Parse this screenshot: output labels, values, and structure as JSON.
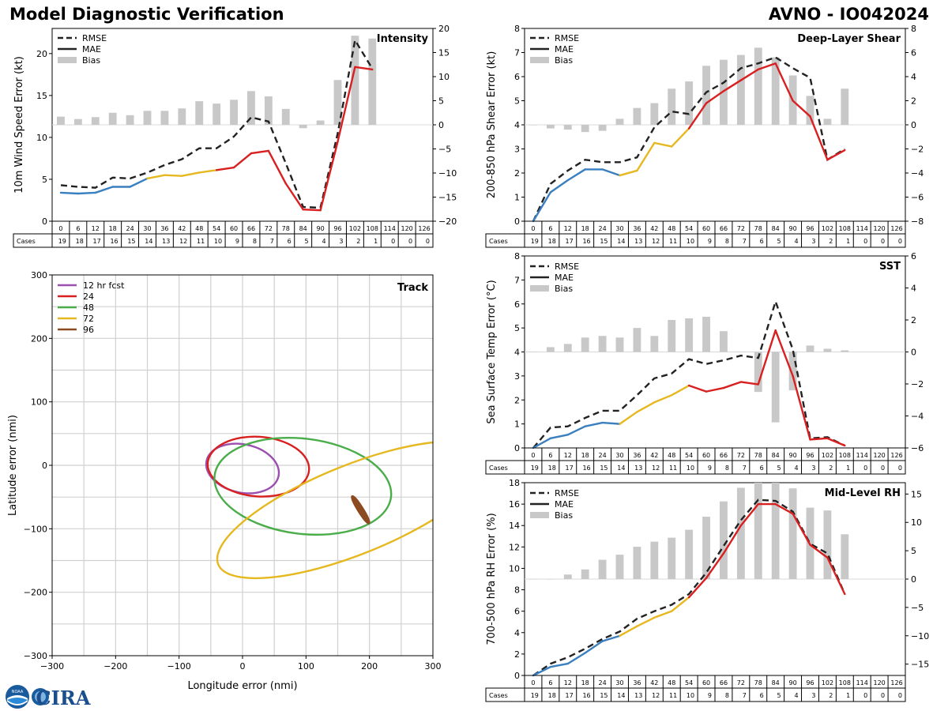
{
  "header": {
    "title": "Model Diagnostic Verification",
    "model_tag": "AVNO - IO042024"
  },
  "colors": {
    "rmse": "#222222",
    "bias": "#c8c8c8",
    "grid": "#d0d0d0",
    "segment_12": "#3a7fbf",
    "segment_24_48": "#e6b820",
    "segment_72_plus": "#d92020",
    "track_12": "#9b4fae",
    "track_24": "#d92020",
    "track_48": "#4aad4a",
    "track_72": "#e6b820",
    "track_96": "#8b4a20"
  },
  "legend": {
    "rmse": "RMSE",
    "mae": "MAE",
    "bias": "Bias"
  },
  "cases_label": "Cases",
  "logos": {
    "noaa": "NOAA",
    "cira": "CIRA"
  },
  "chart_data": [
    {
      "id": "intensity",
      "type": "line",
      "title": "Intensity",
      "ylabel": "10m Wind Speed Error (kt)",
      "ylim": [
        0,
        23
      ],
      "yticks": [
        0,
        5,
        10,
        15,
        20
      ],
      "y2lim": [
        -20,
        20
      ],
      "y2ticks": [
        -20,
        -15,
        -10,
        -5,
        0,
        5,
        10,
        15,
        20
      ],
      "y2ticklabels": [
        "−20",
        "−15",
        "−10",
        "−5",
        "0",
        "5",
        "10",
        "15",
        "20"
      ],
      "x": [
        0,
        6,
        12,
        18,
        24,
        30,
        36,
        42,
        48,
        54,
        60,
        66,
        72,
        78,
        84,
        90,
        96,
        102,
        108,
        114,
        120,
        126
      ],
      "rmse": [
        4.3,
        4.1,
        4.0,
        5.2,
        5.1,
        5.8,
        6.7,
        7.4,
        8.7,
        8.7,
        10.1,
        12.4,
        11.9,
        6.9,
        1.7,
        1.6,
        10.5,
        21.6,
        18.2,
        null,
        null,
        null
      ],
      "mae": [
        3.4,
        3.3,
        3.4,
        4.1,
        4.1,
        5.1,
        5.5,
        5.4,
        5.8,
        6.1,
        6.4,
        8.1,
        8.4,
        4.5,
        1.4,
        1.3,
        9.5,
        18.4,
        18.1,
        null,
        null,
        null
      ],
      "bias": [
        1.7,
        1.2,
        1.6,
        2.5,
        2.0,
        2.9,
        2.9,
        3.4,
        4.9,
        4.4,
        5.2,
        7.0,
        5.9,
        3.3,
        -0.7,
        0.9,
        9.3,
        18.5,
        17.9,
        null,
        null,
        null
      ],
      "cases": [
        19,
        18,
        17,
        16,
        15,
        14,
        13,
        12,
        11,
        10,
        9,
        8,
        7,
        6,
        5,
        4,
        3,
        2,
        1,
        0,
        0,
        0
      ]
    },
    {
      "id": "deep-layer-shear",
      "type": "line",
      "title": "Deep-Layer Shear",
      "ylabel": "200-850 hPa Shear Error (kt)",
      "ylim": [
        0,
        8
      ],
      "yticks": [
        0,
        1,
        2,
        3,
        4,
        5,
        6,
        7,
        8
      ],
      "y2lim": [
        -8,
        8
      ],
      "y2ticks": [
        -8,
        -6,
        -4,
        -2,
        0,
        2,
        4,
        6,
        8
      ],
      "y2ticklabels": [
        "−8",
        "−6",
        "−4",
        "−2",
        "0",
        "2",
        "4",
        "6",
        "8"
      ],
      "x": [
        0,
        6,
        12,
        18,
        24,
        30,
        36,
        42,
        48,
        54,
        60,
        66,
        72,
        78,
        84,
        90,
        96,
        102,
        108,
        114,
        120,
        126
      ],
      "rmse": [
        0.0,
        1.55,
        2.1,
        2.55,
        2.45,
        2.45,
        2.65,
        3.9,
        4.55,
        4.45,
        5.35,
        5.75,
        6.35,
        6.55,
        6.8,
        6.35,
        5.95,
        2.55,
        3.0,
        null,
        null,
        null
      ],
      "mae": [
        0.0,
        1.2,
        1.7,
        2.15,
        2.15,
        1.9,
        2.1,
        3.25,
        3.1,
        3.85,
        4.9,
        5.4,
        5.85,
        6.3,
        6.55,
        5.0,
        4.35,
        2.55,
        2.95,
        null,
        null,
        null
      ],
      "bias": [
        0.0,
        -0.3,
        -0.4,
        -0.6,
        -0.5,
        0.5,
        1.4,
        1.8,
        3.0,
        3.6,
        4.9,
        5.4,
        5.8,
        6.4,
        5.6,
        4.1,
        2.4,
        0.5,
        3.0,
        null,
        null,
        null
      ],
      "cases": [
        19,
        18,
        17,
        16,
        15,
        14,
        13,
        12,
        11,
        10,
        9,
        8,
        7,
        6,
        5,
        4,
        3,
        2,
        1,
        0,
        0,
        0
      ]
    },
    {
      "id": "sst",
      "type": "line",
      "title": "SST",
      "ylabel": "Sea Surface Temp Error (°C)",
      "ylim": [
        0,
        8
      ],
      "yticks": [
        0,
        1,
        2,
        3,
        4,
        5,
        6,
        7,
        8
      ],
      "y2lim": [
        -6,
        6
      ],
      "y2ticks": [
        -6,
        -4,
        -2,
        0,
        2,
        4,
        6
      ],
      "y2ticklabels": [
        "−6",
        "−4",
        "−2",
        "0",
        "2",
        "4",
        "6"
      ],
      "x": [
        0,
        6,
        12,
        18,
        24,
        30,
        36,
        42,
        48,
        54,
        60,
        66,
        72,
        78,
        84,
        90,
        96,
        102,
        108,
        114,
        120,
        126
      ],
      "rmse": [
        0.0,
        0.85,
        0.9,
        1.25,
        1.55,
        1.55,
        2.2,
        2.9,
        3.1,
        3.7,
        3.5,
        3.65,
        3.85,
        3.75,
        6.1,
        4.1,
        0.4,
        0.45,
        0.1,
        null,
        null,
        null
      ],
      "mae": [
        0.0,
        0.4,
        0.55,
        0.9,
        1.05,
        1.0,
        1.5,
        1.9,
        2.2,
        2.6,
        2.35,
        2.5,
        2.75,
        2.65,
        4.9,
        3.0,
        0.35,
        0.4,
        0.1,
        null,
        null,
        null
      ],
      "bias": [
        0.0,
        0.3,
        0.5,
        0.9,
        1.0,
        0.9,
        1.5,
        1.0,
        2.0,
        2.1,
        2.2,
        1.3,
        0.0,
        -2.5,
        -4.4,
        -2.4,
        0.4,
        0.2,
        0.1,
        null,
        null,
        null
      ],
      "cases": [
        19,
        18,
        17,
        16,
        15,
        14,
        13,
        12,
        11,
        10,
        9,
        8,
        7,
        6,
        5,
        4,
        3,
        2,
        1,
        0,
        0,
        0
      ]
    },
    {
      "id": "mid-level-rh",
      "type": "line",
      "title": "Mid-Level RH",
      "ylabel": "700-500 hPa RH Error (%)",
      "ylim": [
        0,
        18
      ],
      "yticks": [
        0,
        2,
        4,
        6,
        8,
        10,
        12,
        14,
        16,
        18
      ],
      "y2lim": [
        -17,
        17
      ],
      "y2ticks": [
        -15,
        -10,
        -5,
        0,
        5,
        10,
        15
      ],
      "y2ticklabels": [
        "−15",
        "−10",
        "−5",
        "0",
        "5",
        "10",
        "15"
      ],
      "x": [
        0,
        6,
        12,
        18,
        24,
        30,
        36,
        42,
        48,
        54,
        60,
        66,
        72,
        78,
        84,
        90,
        96,
        102,
        108,
        114,
        120,
        126
      ],
      "rmse": [
        0.0,
        1.1,
        1.7,
        2.5,
        3.4,
        4.1,
        5.3,
        6.0,
        6.6,
        7.6,
        9.6,
        12.1,
        14.5,
        16.4,
        16.3,
        15.3,
        12.3,
        11.4,
        7.6,
        null,
        null,
        null
      ],
      "mae": [
        0.0,
        0.8,
        1.1,
        2.1,
        3.2,
        3.7,
        4.6,
        5.4,
        6.0,
        7.3,
        9.1,
        11.4,
        14.0,
        16.0,
        16.0,
        15.1,
        12.2,
        11.0,
        7.6,
        null,
        null,
        null
      ],
      "bias": [
        0.0,
        0.0,
        0.8,
        1.7,
        3.4,
        4.3,
        5.7,
        6.6,
        7.3,
        8.7,
        11.0,
        13.7,
        16.1,
        17.0,
        17.0,
        16.0,
        12.6,
        12.1,
        7.9,
        null,
        null,
        null
      ],
      "cases": [
        19,
        18,
        17,
        16,
        15,
        14,
        13,
        12,
        11,
        10,
        9,
        8,
        7,
        6,
        5,
        4,
        3,
        2,
        1,
        0,
        0,
        0
      ]
    },
    {
      "id": "track",
      "type": "ellipse",
      "title": "Track",
      "xlabel": "Longitude error (nmi)",
      "ylabel": "Latitude error (nmi)",
      "xlim": [
        -300,
        300
      ],
      "ylim": [
        -300,
        300
      ],
      "ticks": [
        -300,
        -200,
        -100,
        0,
        100,
        200,
        300
      ],
      "ticklabels": [
        "−300",
        "−200",
        "−100",
        "0",
        "100",
        "200",
        "300"
      ],
      "series": [
        {
          "name": "12 hr fcst",
          "color_key": "track_12",
          "cx": 0,
          "cy": -5,
          "rx": 58,
          "ry": 38,
          "angle": 12
        },
        {
          "name": "24",
          "color_key": "track_24",
          "cx": 25,
          "cy": -2,
          "rx": 80,
          "ry": 47,
          "angle": 4
        },
        {
          "name": "48",
          "color_key": "track_48",
          "cx": 95,
          "cy": -33,
          "rx": 140,
          "ry": 75,
          "angle": 7
        },
        {
          "name": "72",
          "color_key": "track_72",
          "cx": 175,
          "cy": -70,
          "rx": 230,
          "ry": 70,
          "angle": -22
        },
        {
          "name": "96",
          "color_key": "track_96",
          "cx": 186,
          "cy": -70,
          "rx": 24,
          "ry": 3,
          "angle": 58
        }
      ]
    }
  ]
}
